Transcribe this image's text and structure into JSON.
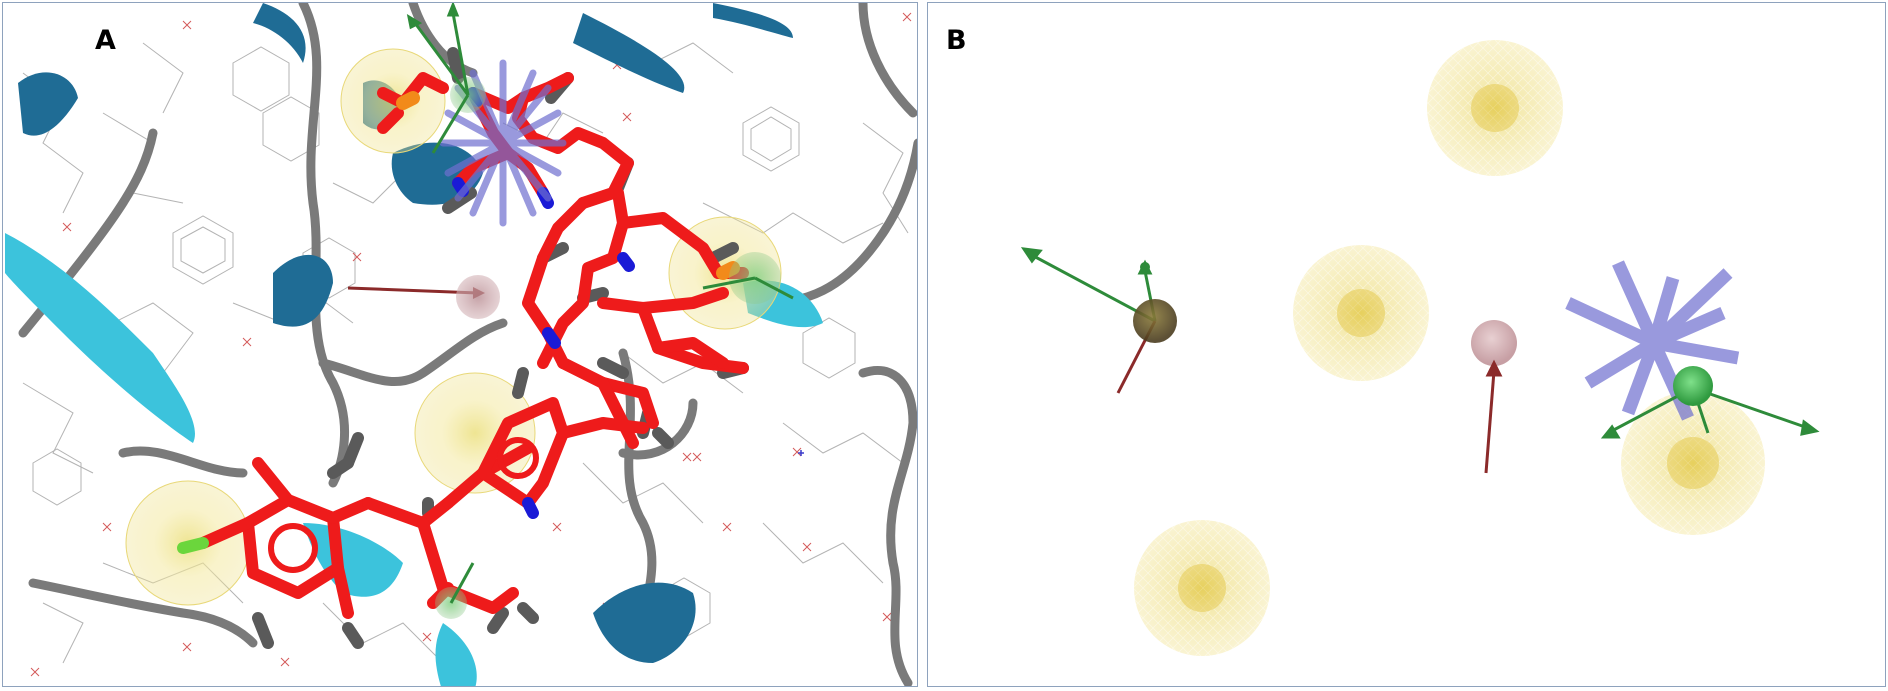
{
  "panels": [
    {
      "label": "A"
    },
    {
      "label": "B"
    }
  ],
  "colors": {
    "border": "#8ea2bd",
    "ligand_carbon": "#ee1b1b",
    "ligand_nitrogen": "#1a1ad6",
    "ligand_hydrogen": "#5a5a5a",
    "ligand_halogen": "#6bd63c",
    "ribbon_dark": "#1f6c95",
    "ribbon_light": "#3cc3dc",
    "coil": "#7a7a7a",
    "hydrophobic_sphere": "#f3e38a",
    "acceptor_vector": "#2e8b3a",
    "donor_vector": "#8b2a2a",
    "aromatic_ring_feature": "#6f6fd0",
    "excluded_volume": "#c79fa4"
  },
  "icons": {
    "hydrophobic": "hydrophobic-feature-sphere-icon",
    "h_bond_acceptor": "hbond-acceptor-arrow-icon",
    "h_bond_donor": "hbond-donor-arrow-icon",
    "aromatic_ring": "aromatic-ring-star-icon"
  }
}
